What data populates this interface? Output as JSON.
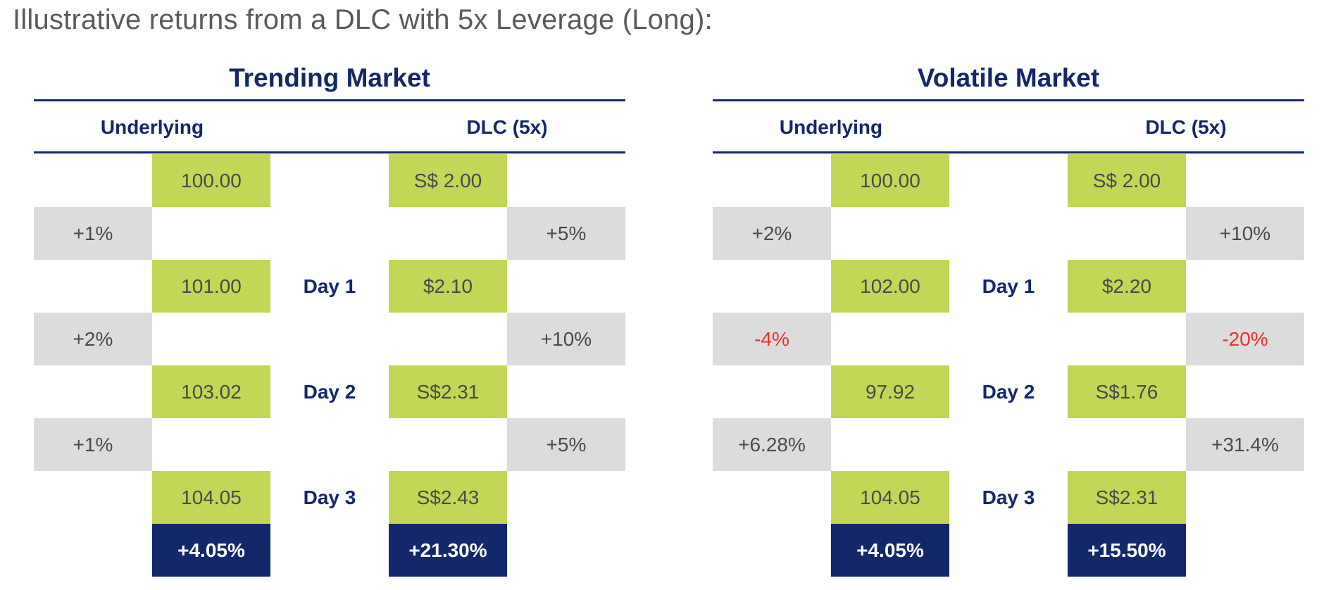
{
  "title": "Illustrative returns from a DLC with 5x Leverage (Long):",
  "colors": {
    "navy": "#13286a",
    "green": "#c3d656",
    "grey": "#dcdcdc",
    "negative": "#e8312c"
  },
  "panels": [
    {
      "title": "Trending Market",
      "underlying_label": "Underlying",
      "dlc_label": "DLC (5x)",
      "start": {
        "underlying": "100.00",
        "dlc": "S$ 2.00"
      },
      "days": [
        {
          "label": "Day 1",
          "underlying_change": "+1%",
          "dlc_change": "+5%",
          "underlying": "101.00",
          "dlc": "$2.10"
        },
        {
          "label": "Day 2",
          "underlying_change": "+2%",
          "dlc_change": "+10%",
          "underlying": "103.02",
          "dlc": "S$2.31"
        },
        {
          "label": "Day 3",
          "underlying_change": "+1%",
          "dlc_change": "+5%",
          "underlying": "104.05",
          "dlc": "S$2.43"
        }
      ],
      "total": {
        "underlying": "+4.05%",
        "dlc": "+21.30%"
      }
    },
    {
      "title": "Volatile Market",
      "underlying_label": "Underlying",
      "dlc_label": "DLC (5x)",
      "start": {
        "underlying": "100.00",
        "dlc": "S$ 2.00"
      },
      "days": [
        {
          "label": "Day 1",
          "underlying_change": "+2%",
          "dlc_change": "+10%",
          "underlying": "102.00",
          "dlc": "$2.20"
        },
        {
          "label": "Day 2",
          "underlying_change": "-4%",
          "dlc_change": "-20%",
          "underlying": "97.92",
          "dlc": "S$1.76"
        },
        {
          "label": "Day 3",
          "underlying_change": "+6.28%",
          "dlc_change": "+31.4%",
          "underlying": "104.05",
          "dlc": "S$2.31"
        }
      ],
      "total": {
        "underlying": "+4.05%",
        "dlc": "+15.50%"
      }
    }
  ]
}
